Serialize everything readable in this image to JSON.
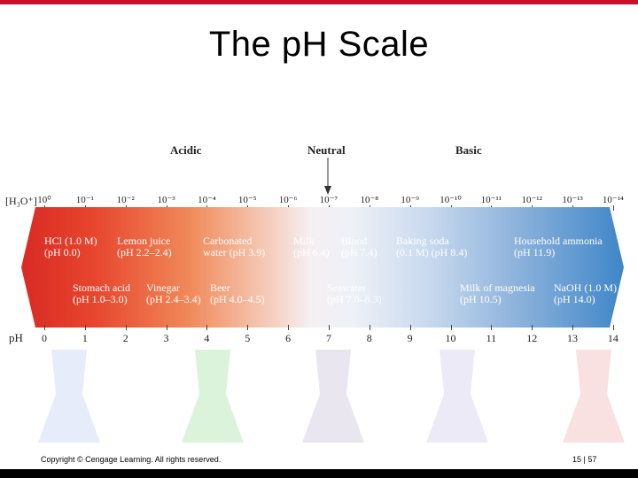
{
  "slide": {
    "title": "The pH Scale",
    "footer_left": "Copyright © Cengage Learning. All rights reserved.",
    "footer_right": "15 | 57"
  },
  "diagram": {
    "region_labels": {
      "acidic": "Acidic",
      "neutral": "Neutral",
      "basic": "Basic"
    },
    "h3o_label": "[H₃O⁺]",
    "h3o_powers": [
      "10⁰",
      "10⁻¹",
      "10⁻²",
      "10⁻³",
      "10⁻⁴",
      "10⁻⁵",
      "10⁻⁶",
      "10⁻⁷",
      "10⁻⁸",
      "10⁻⁹",
      "10⁻¹⁰",
      "10⁻¹¹",
      "10⁻¹²",
      "10⁻¹³",
      "10⁻¹⁴"
    ],
    "ph_label": "pH",
    "ph_values": [
      "0",
      "1",
      "2",
      "3",
      "4",
      "5",
      "6",
      "7",
      "8",
      "9",
      "10",
      "11",
      "12",
      "13",
      "14"
    ],
    "substances_top": [
      {
        "name": "HCl (1.0 M)",
        "ph": "(pH 0.0)"
      },
      {
        "name": "Lemon juice",
        "ph": "(pH 2.2–2.4)"
      },
      {
        "name": "Carbonated",
        "ph": "water (pH 3.9)"
      },
      {
        "name": "Milk",
        "ph": "(pH 6.4)"
      },
      {
        "name": "Blood",
        "ph": "(pH 7.4)"
      },
      {
        "name": "Baking soda",
        "ph": "(0.1 M) (pH 8.4)"
      },
      {
        "name": "Household ammonia",
        "ph": "(pH 11.9)"
      }
    ],
    "substances_bottom": [
      {
        "name": "Stomach acid",
        "ph": "(pH 1.0–3.0)"
      },
      {
        "name": "Vinegar",
        "ph": "(pH 2.4–3.4)"
      },
      {
        "name": "Beer",
        "ph": "(pH 4.0–4.5)"
      },
      {
        "name": "Seawater",
        "ph": "(pH 7.0–8.3)"
      },
      {
        "name": "Milk of magnesia",
        "ph": "(pH 10.5)"
      },
      {
        "name": "NaOH (1.0 M)",
        "ph": "(pH 14.0)"
      }
    ]
  }
}
